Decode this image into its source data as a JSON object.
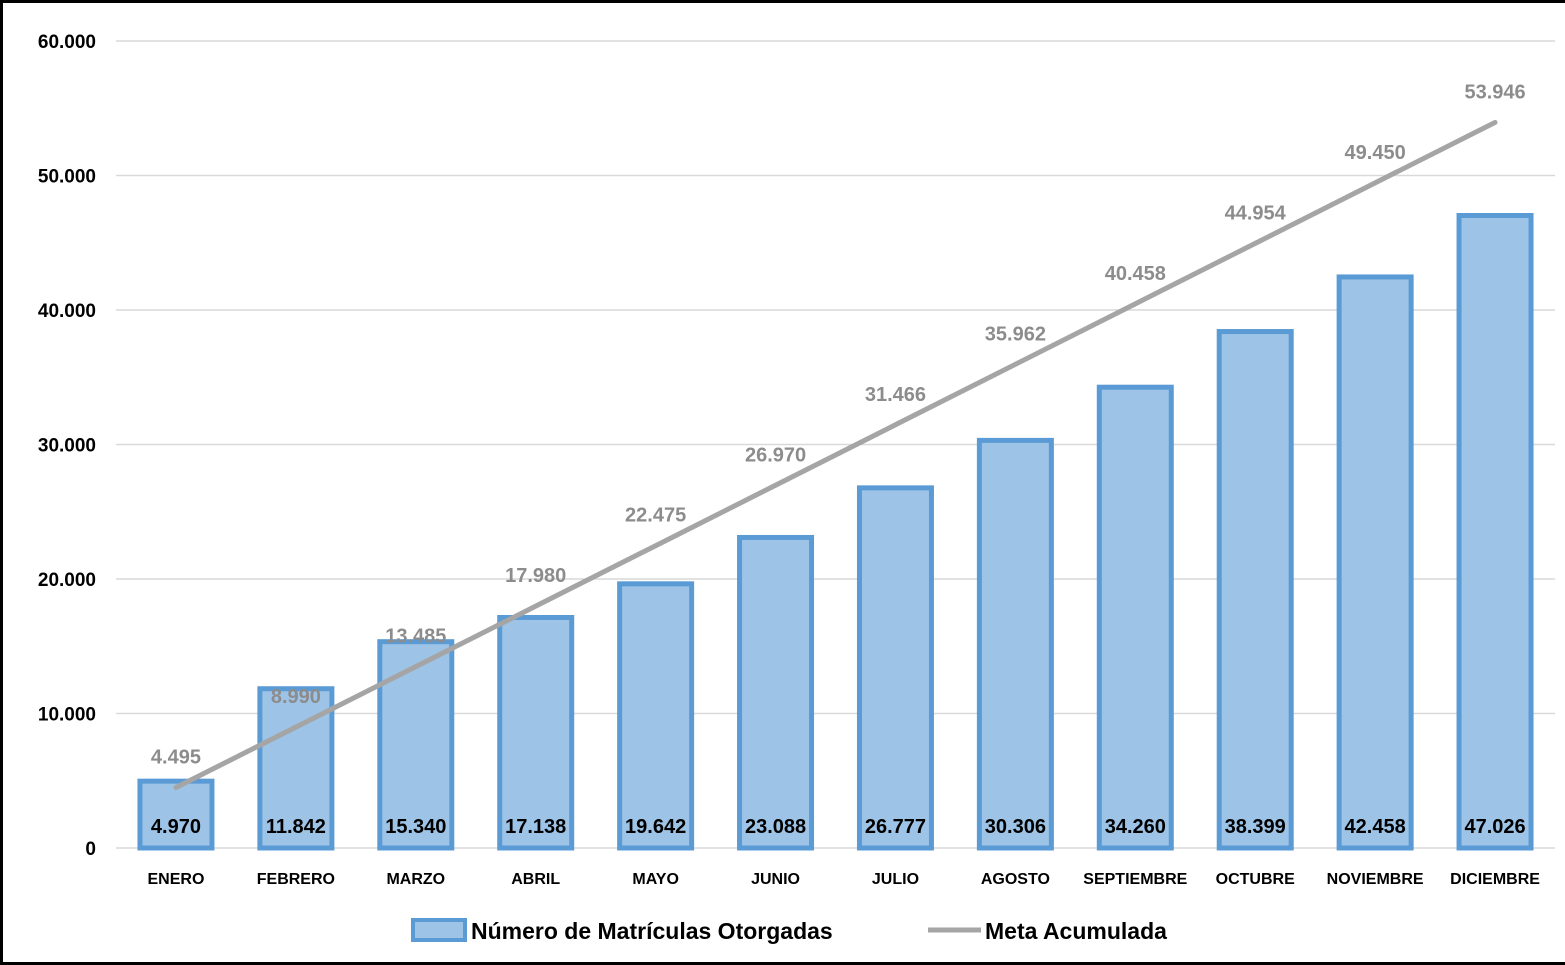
{
  "chart_data": {
    "type": "bar",
    "categories": [
      "ENERO",
      "FEBRERO",
      "MARZO",
      "ABRIL",
      "MAYO",
      "JUNIO",
      "JULIO",
      "AGOSTO",
      "SEPTIEMBRE",
      "OCTUBRE",
      "NOVIEMBRE",
      "DICIEMBRE"
    ],
    "series": [
      {
        "name": "Número de Matrículas Otorgadas",
        "type": "bar",
        "color": "#9dc3e6",
        "border_color": "#5b9bd5",
        "values": [
          4970,
          11842,
          15340,
          17138,
          19642,
          23088,
          26777,
          30306,
          34260,
          38399,
          42458,
          47026
        ],
        "labels": [
          "4.970",
          "11.842",
          "15.340",
          "17.138",
          "19.642",
          "23.088",
          "26.777",
          "30.306",
          "34.260",
          "38.399",
          "42.458",
          "47.026"
        ]
      },
      {
        "name": "Meta Acumulada",
        "type": "line",
        "color": "#a5a5a5",
        "label_color": "#8c8c8c",
        "values": [
          4495,
          8990,
          13485,
          17980,
          22475,
          26970,
          31466,
          35962,
          40458,
          44954,
          49450,
          53946
        ],
        "labels": [
          "4.495",
          "8.990",
          "13.485",
          "17.980",
          "22.475",
          "26.970",
          "31.466",
          "35.962",
          "40.458",
          "44.954",
          "49.450",
          "53.946"
        ]
      }
    ],
    "ylim": [
      0,
      60000
    ],
    "yticks": [
      0,
      10000,
      20000,
      30000,
      40000,
      50000,
      60000
    ],
    "ytick_labels": [
      "0",
      "10.000",
      "20.000",
      "30.000",
      "40.000",
      "50.000",
      "60.000"
    ],
    "grid": true,
    "gridline_color": "#d9d9d9",
    "legend_position": "bottom"
  }
}
